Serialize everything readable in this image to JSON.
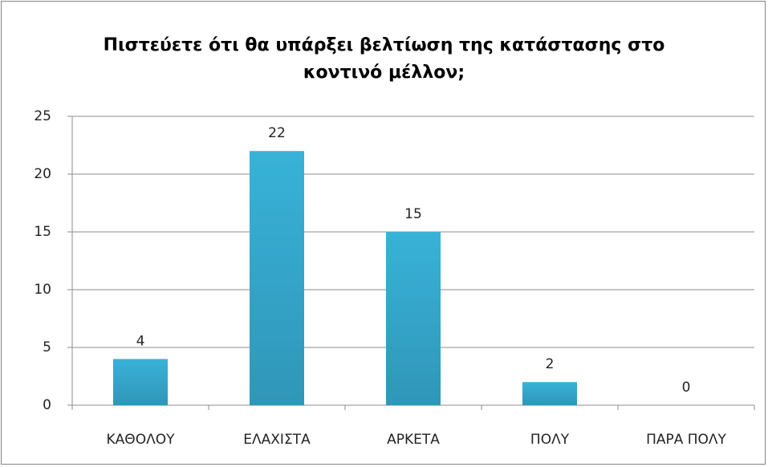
{
  "chart_data": {
    "type": "bar",
    "title": "Πιστεύετε ότι θα υπάρξει βελτίωση της κατάστασης στο κοντινό μέλλον;",
    "categories": [
      "ΚΑΘΟΛΟΥ",
      "ΕΛΑΧΙΣΤΑ",
      "ΑΡΚΕΤΑ",
      "ΠΟΛΥ",
      "ΠΑΡΑ ΠΟΛΥ"
    ],
    "values": [
      4,
      22,
      15,
      2,
      0
    ],
    "color": "#38b2d8",
    "ylim": [
      0,
      25
    ],
    "yticks": [
      0,
      5,
      10,
      15,
      20,
      25
    ],
    "grid": true
  }
}
